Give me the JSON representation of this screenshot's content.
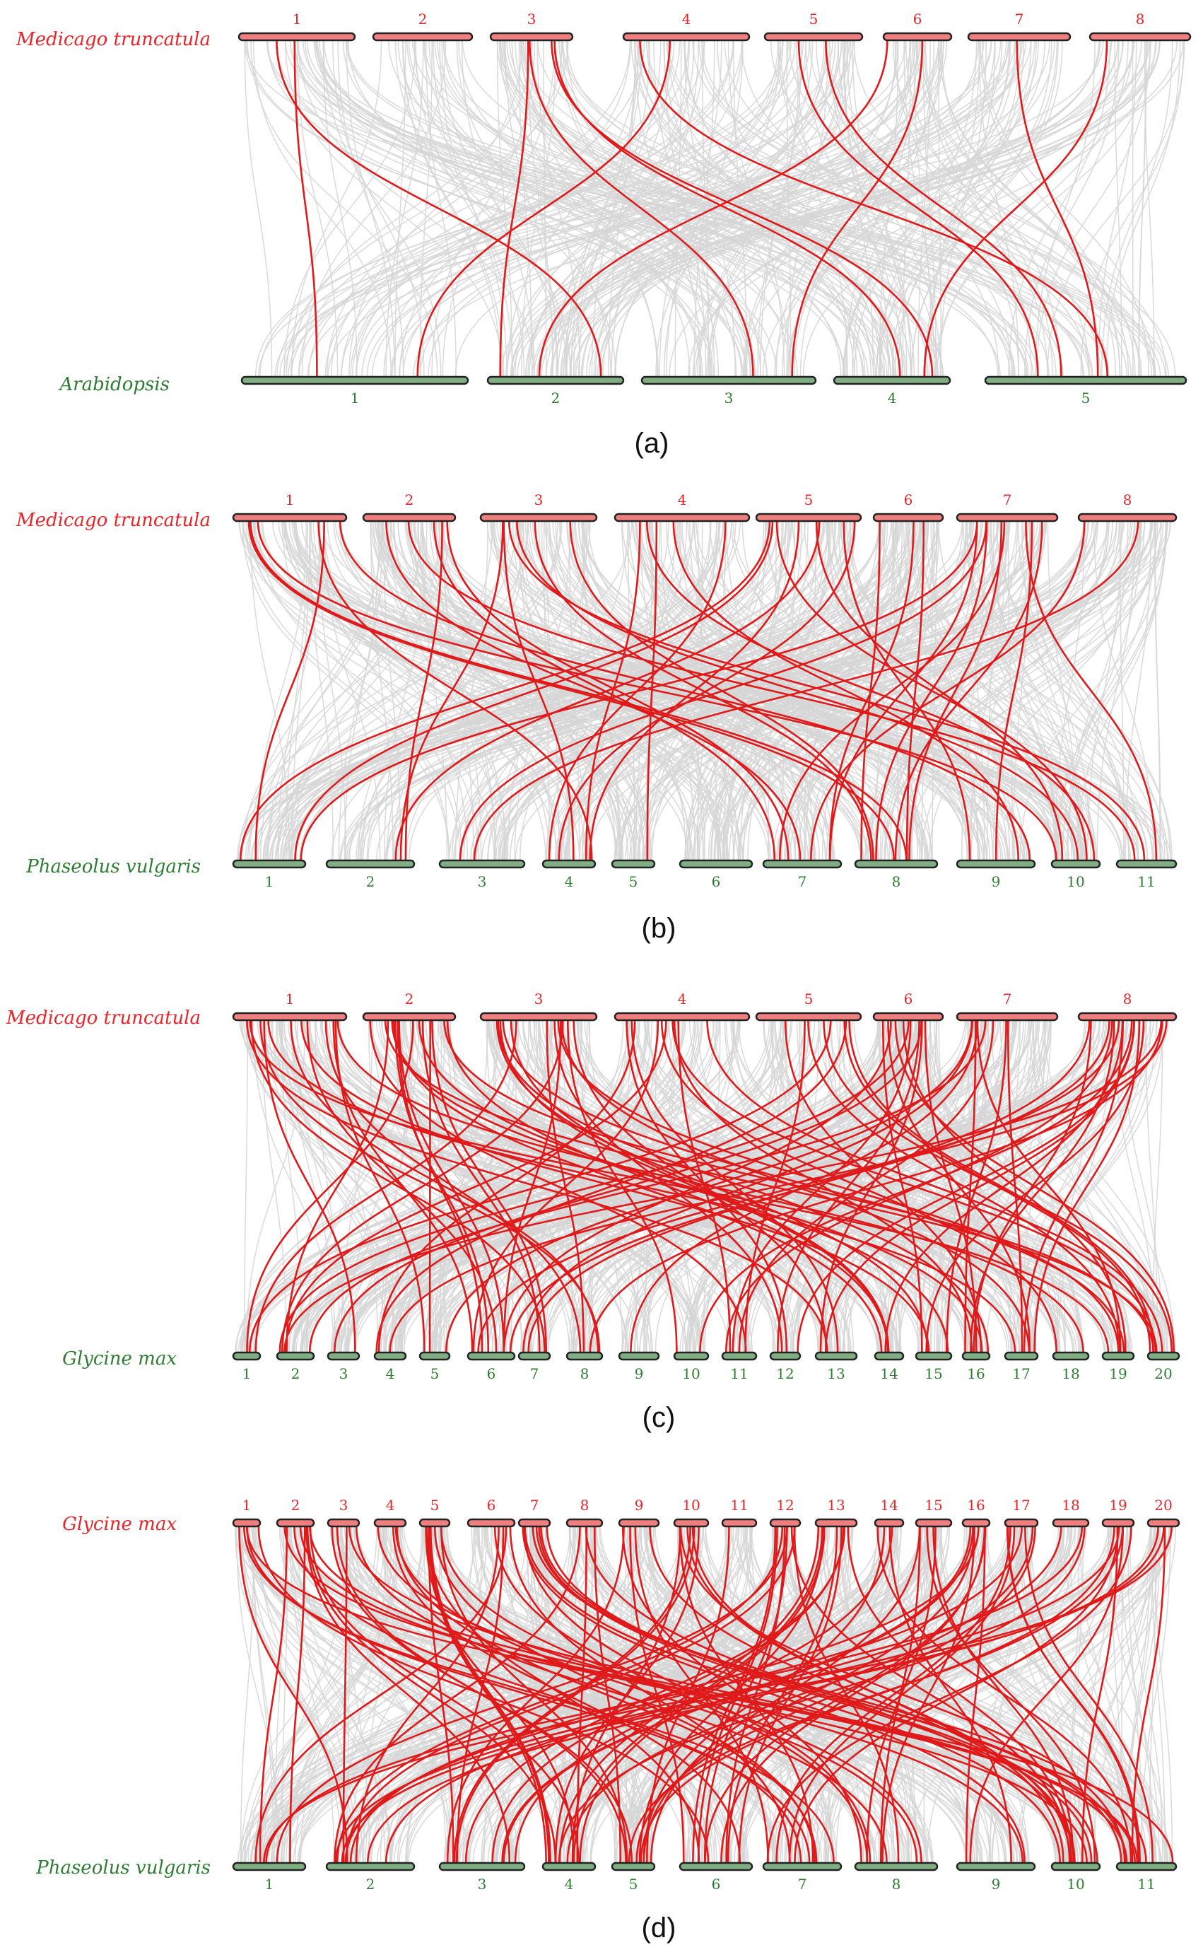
{
  "colors": {
    "top_species_a": "#e8262a",
    "bottom_species": "#2e7d32",
    "top_bar_fill": "#f08080",
    "bottom_bar_fill": "#7fae82",
    "syntenic_links": "#d6d6d6",
    "highlighted_links": "#e01a1a"
  },
  "panels": [
    {
      "caption": "(a)",
      "top": {
        "species": "Medicago truncatula",
        "chromosomes": [
          "1",
          "2",
          "3",
          "4",
          "5",
          "6",
          "7",
          "8"
        ]
      },
      "bottom": {
        "species": "Arabidopsis",
        "chromosomes": [
          "1",
          "2",
          "3",
          "4",
          "5"
        ]
      }
    },
    {
      "caption": "(b)",
      "top": {
        "species": "Medicago truncatula",
        "chromosomes": [
          "1",
          "2",
          "3",
          "4",
          "5",
          "6",
          "7",
          "8"
        ]
      },
      "bottom": {
        "species": "Phaseolus vulgaris",
        "chromosomes": [
          "1",
          "2",
          "3",
          "4",
          "5",
          "6",
          "7",
          "8",
          "9",
          "10",
          "11"
        ]
      }
    },
    {
      "caption": "(c)",
      "top": {
        "species": "Medicago truncatula",
        "chromosomes": [
          "1",
          "2",
          "3",
          "4",
          "5",
          "6",
          "7",
          "8"
        ]
      },
      "bottom": {
        "species": "Glycine max",
        "chromosomes": [
          "1",
          "2",
          "3",
          "4",
          "5",
          "6",
          "7",
          "8",
          "9",
          "10",
          "11",
          "12",
          "13",
          "14",
          "15",
          "16",
          "17",
          "18",
          "19",
          "20"
        ]
      }
    },
    {
      "caption": "(d)",
      "top": {
        "species": "Glycine max",
        "chromosomes": [
          "1",
          "2",
          "3",
          "4",
          "5",
          "6",
          "7",
          "8",
          "9",
          "10",
          "11",
          "12",
          "13",
          "14",
          "15",
          "16",
          "17",
          "18",
          "19",
          "20"
        ]
      },
      "bottom": {
        "species": "Phaseolus vulgaris",
        "chromosomes": [
          "1",
          "2",
          "3",
          "4",
          "5",
          "6",
          "7",
          "8",
          "9",
          "10",
          "11"
        ]
      }
    }
  ]
}
